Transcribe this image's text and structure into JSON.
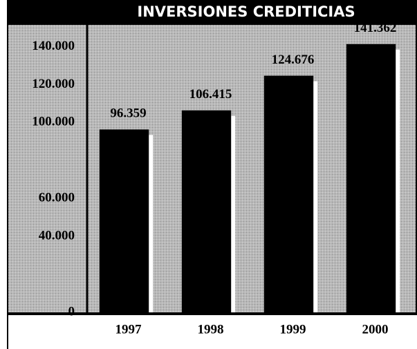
{
  "chart_data": {
    "type": "bar",
    "title": "INVERSIONES CREDITICIAS",
    "categories": [
      "1997",
      "1998",
      "1999",
      "2000"
    ],
    "values": [
      96359,
      106415,
      124676,
      141362
    ],
    "value_labels": [
      "96.359",
      "106.415",
      "124.676",
      "141.362"
    ],
    "color": "#000000",
    "ylim": [
      0,
      150000
    ],
    "yticks": [
      0,
      {
        "value": 40000,
        "label": "40.000"
      },
      {
        "value": 60000,
        "label": "60.000"
      },
      {
        "value": 100000,
        "label": "100.000"
      },
      {
        "value": 120000,
        "label": "120.000"
      },
      {
        "value": 140000,
        "label": "140.000"
      }
    ],
    "grid": false
  }
}
